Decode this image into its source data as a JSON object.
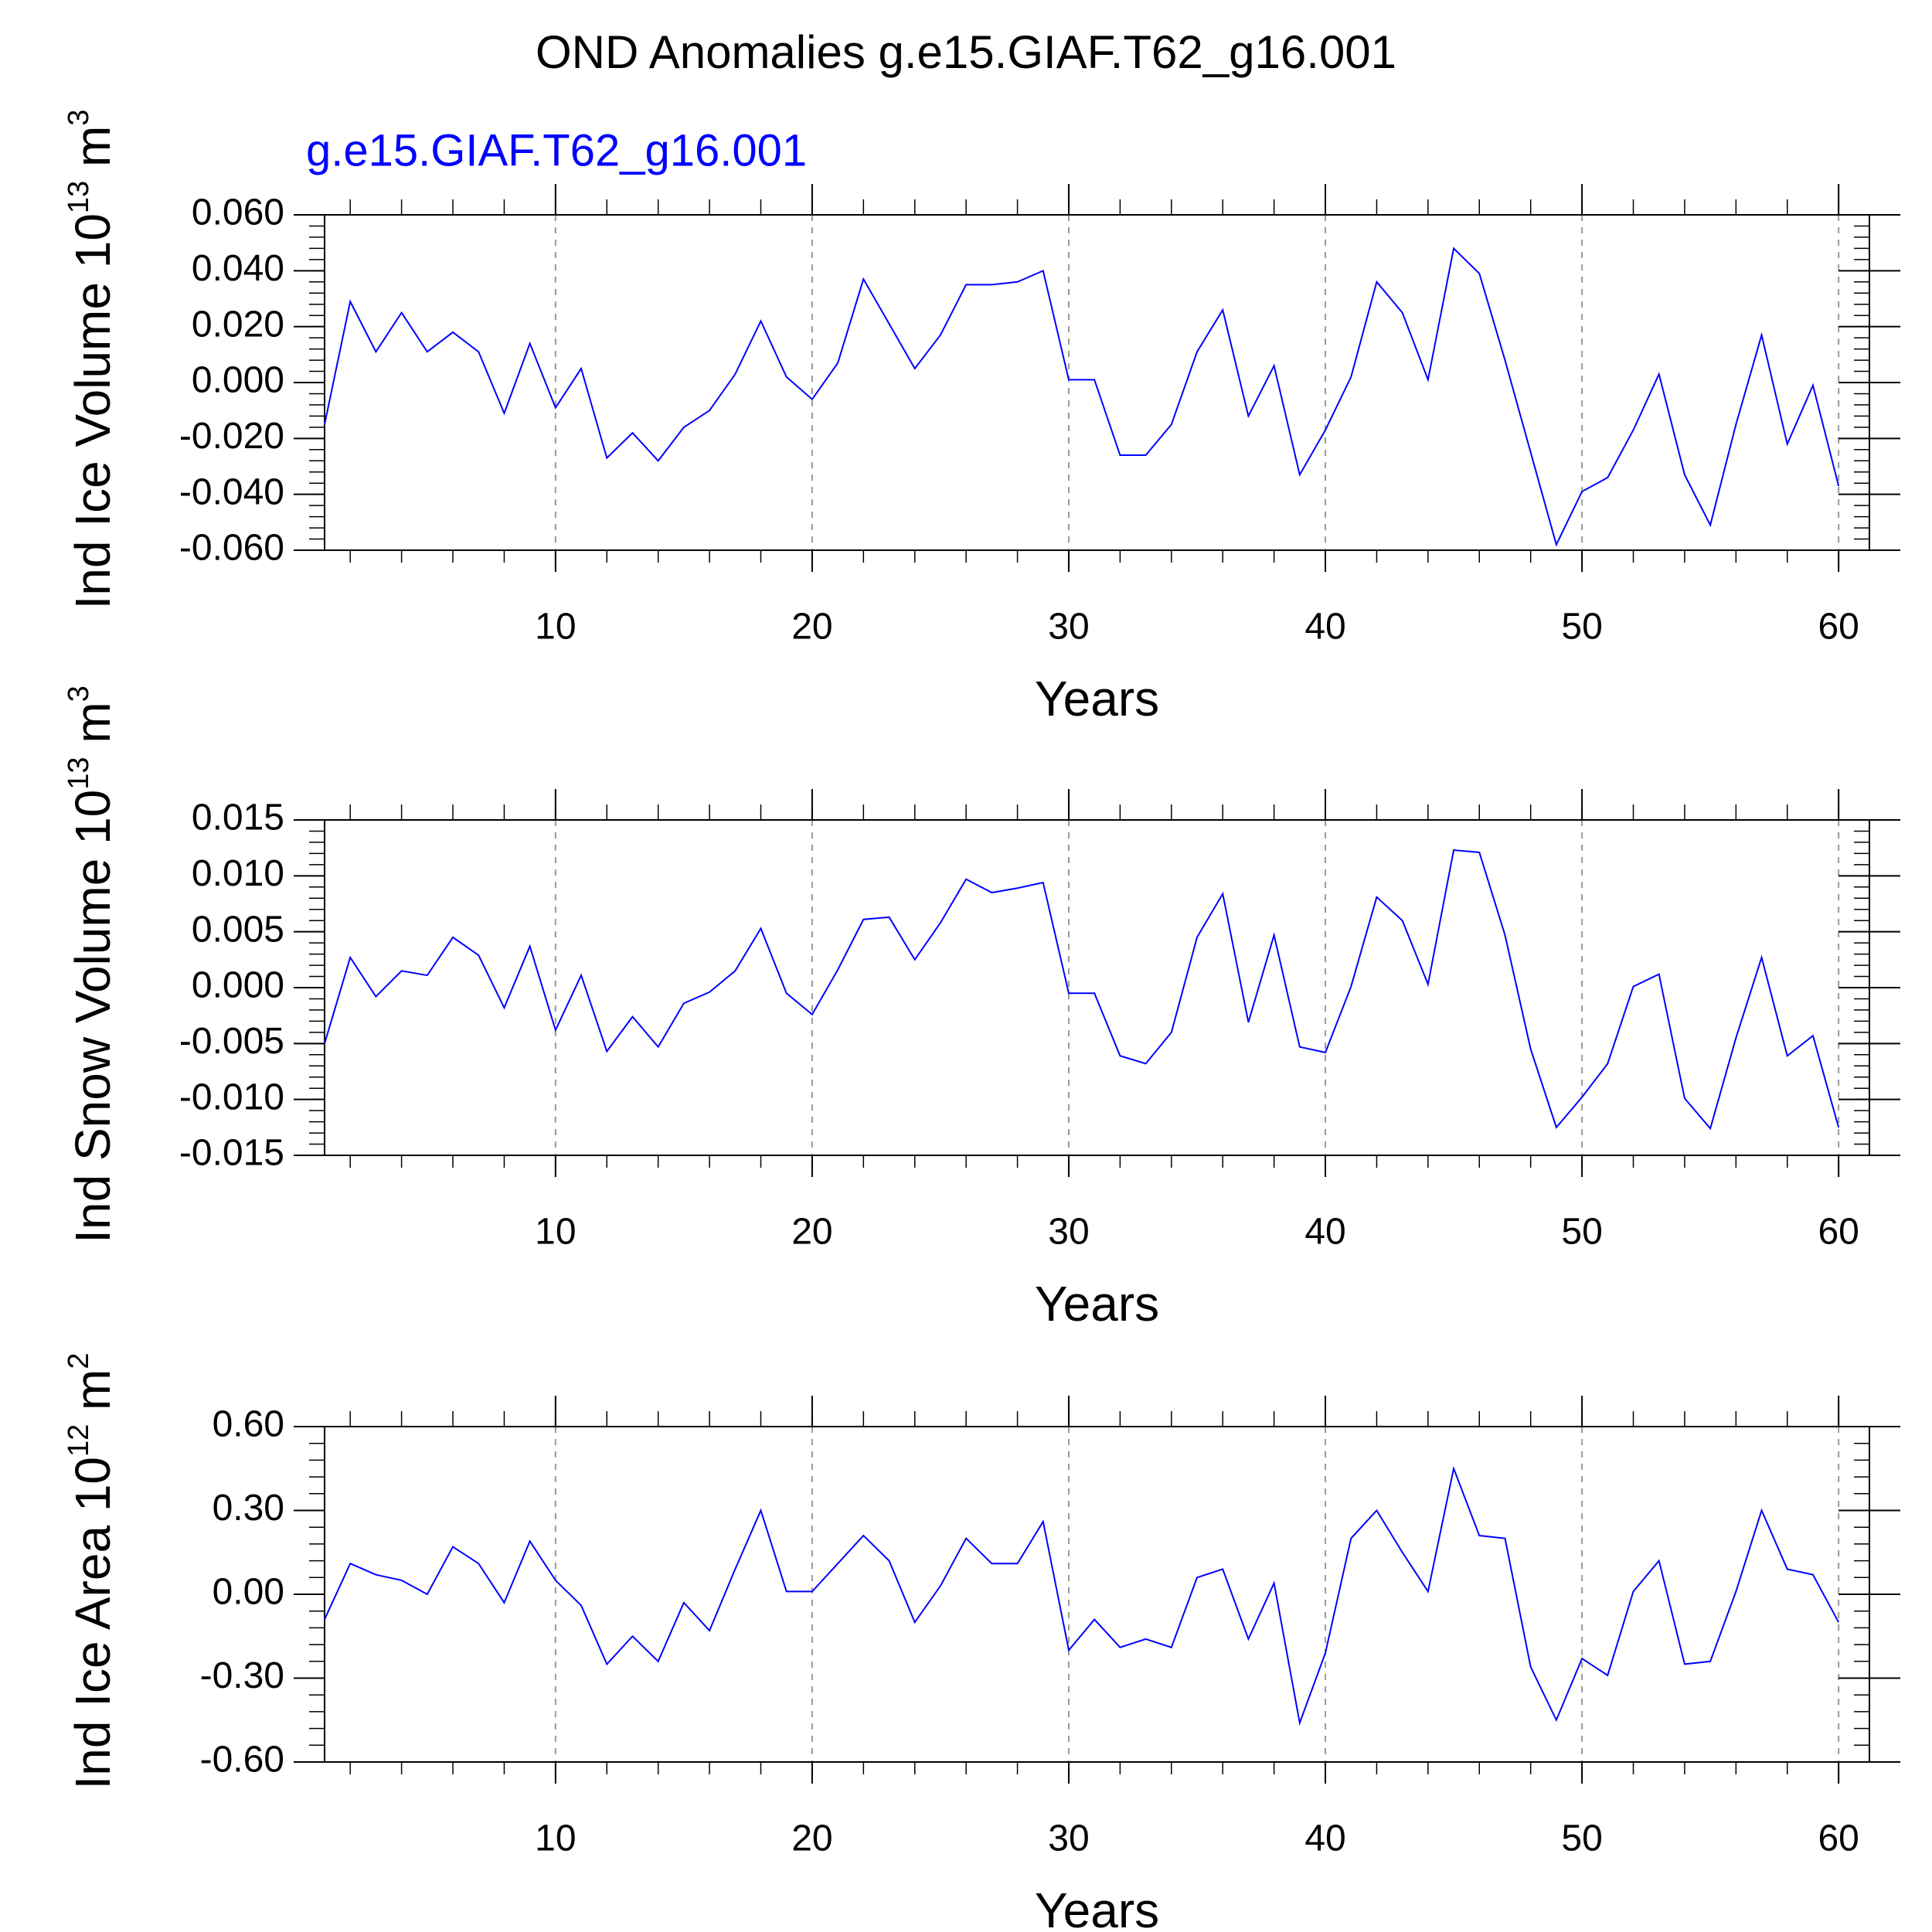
{
  "title": "OND Anomalies g.e15.GIAF.T62_g16.001",
  "chart_data": [
    {
      "type": "line",
      "subtitle": "g.e15.GIAF.T62_g16.001",
      "xlabel": "Years",
      "ylabel": [
        "Ind Ice Volume 10",
        "13",
        " m",
        "3"
      ],
      "x": [
        1,
        2,
        3,
        4,
        5,
        6,
        7,
        8,
        9,
        10,
        11,
        12,
        13,
        14,
        15,
        16,
        17,
        18,
        19,
        20,
        21,
        22,
        23,
        24,
        25,
        26,
        27,
        28,
        29,
        30,
        31,
        32,
        33,
        34,
        35,
        36,
        37,
        38,
        39,
        40,
        41,
        42,
        43,
        44,
        45,
        46,
        47,
        48,
        49,
        50,
        51,
        52,
        53,
        54,
        55,
        56,
        57,
        58,
        59,
        60
      ],
      "series": [
        {
          "name": "g.e15.GIAF.T62_g16.001",
          "color": "#0000ff",
          "values": [
            -0.015,
            0.029,
            0.011,
            0.025,
            0.011,
            0.018,
            0.011,
            -0.011,
            0.014,
            -0.009,
            0.005,
            -0.027,
            -0.018,
            -0.028,
            -0.016,
            -0.01,
            0.003,
            0.022,
            0.002,
            -0.006,
            0.007,
            0.037,
            0.021,
            0.005,
            0.017,
            0.035,
            0.035,
            0.036,
            0.04,
            0.001,
            0.001,
            -0.026,
            -0.026,
            -0.015,
            0.011,
            0.026,
            -0.012,
            0.006,
            -0.033,
            -0.017,
            0.002,
            0.036,
            0.025,
            0.001,
            0.048,
            0.039,
            0.008,
            -0.025,
            -0.058,
            -0.039,
            -0.034,
            -0.017,
            0.003,
            -0.033,
            -0.051,
            -0.015,
            0.017,
            -0.022,
            -0.001,
            -0.037
          ]
        }
      ],
      "xlim": [
        1,
        61.2
      ],
      "xticks": [
        10,
        20,
        30,
        40,
        50,
        60
      ],
      "grid": true,
      "ylim": [
        -0.06,
        0.06
      ],
      "yticks": [
        {
          "value": -0.06,
          "label": "-0.060"
        },
        {
          "value": -0.04,
          "label": "-0.040"
        },
        {
          "value": -0.02,
          "label": "-0.020"
        },
        {
          "value": 0,
          "label": "0.000"
        },
        {
          "value": 0.02,
          "label": "0.020"
        },
        {
          "value": 0.04,
          "label": "0.040"
        },
        {
          "value": 0.06,
          "label": "0.060"
        }
      ]
    },
    {
      "type": "line",
      "xlabel": "Years",
      "ylabel": [
        "Ind Snow Volume 10",
        "13",
        " m",
        "3"
      ],
      "x": [
        1,
        2,
        3,
        4,
        5,
        6,
        7,
        8,
        9,
        10,
        11,
        12,
        13,
        14,
        15,
        16,
        17,
        18,
        19,
        20,
        21,
        22,
        23,
        24,
        25,
        26,
        27,
        28,
        29,
        30,
        31,
        32,
        33,
        34,
        35,
        36,
        37,
        38,
        39,
        40,
        41,
        42,
        43,
        44,
        45,
        46,
        47,
        48,
        49,
        50,
        51,
        52,
        53,
        54,
        55,
        56,
        57,
        58,
        59,
        60
      ],
      "series": [
        {
          "name": "g.e15.GIAF.T62_g16.001",
          "color": "#0000ff",
          "values": [
            -0.005,
            0.0027,
            -0.0008,
            0.0015,
            0.0011,
            0.0045,
            0.0029,
            -0.0018,
            0.0037,
            -0.0038,
            0.0011,
            -0.0057,
            -0.0026,
            -0.0053,
            -0.0014,
            -0.0004,
            0.0015,
            0.0053,
            -0.0005,
            -0.0024,
            0.0016,
            0.0061,
            0.0063,
            0.0025,
            0.0058,
            0.0097,
            0.0085,
            0.0089,
            0.0094,
            -0.0005,
            -0.0005,
            -0.0061,
            -0.0068,
            -0.004,
            0.0045,
            0.0084,
            -0.0031,
            0.0047,
            -0.0053,
            -0.0058,
            0.0001,
            0.0081,
            0.006,
            0.0003,
            0.0123,
            0.0121,
            0.0047,
            -0.0055,
            -0.0125,
            -0.0098,
            -0.0068,
            0.0001,
            0.0012,
            -0.0099,
            -0.0126,
            -0.0045,
            0.0027,
            -0.0061,
            -0.0043,
            -0.0125
          ]
        }
      ],
      "xlim": [
        1,
        61.2
      ],
      "xticks": [
        10,
        20,
        30,
        40,
        50,
        60
      ],
      "grid": true,
      "ylim": [
        -0.015,
        0.015
      ],
      "yticks": [
        {
          "value": -0.015,
          "label": "-0.015"
        },
        {
          "value": -0.01,
          "label": "-0.010"
        },
        {
          "value": -0.005,
          "label": "-0.005"
        },
        {
          "value": 0,
          "label": "0.000"
        },
        {
          "value": 0.005,
          "label": "0.005"
        },
        {
          "value": 0.01,
          "label": "0.010"
        },
        {
          "value": 0.015,
          "label": "0.015"
        }
      ]
    },
    {
      "type": "line",
      "xlabel": "Years",
      "ylabel": [
        "Ind Ice Area 10",
        "12",
        " m",
        "2"
      ],
      "x": [
        1,
        2,
        3,
        4,
        5,
        6,
        7,
        8,
        9,
        10,
        11,
        12,
        13,
        14,
        15,
        16,
        17,
        18,
        19,
        20,
        21,
        22,
        23,
        24,
        25,
        26,
        27,
        28,
        29,
        30,
        31,
        32,
        33,
        34,
        35,
        36,
        37,
        38,
        39,
        40,
        41,
        42,
        43,
        44,
        45,
        46,
        47,
        48,
        49,
        50,
        51,
        52,
        53,
        54,
        55,
        56,
        57,
        58,
        59,
        60
      ],
      "series": [
        {
          "name": "g.e15.GIAF.T62_g16.001",
          "color": "#0000ff",
          "values": [
            -0.09,
            0.11,
            0.07,
            0.05,
            0.0,
            0.17,
            0.11,
            -0.03,
            0.19,
            0.05,
            -0.04,
            -0.25,
            -0.15,
            -0.24,
            -0.03,
            -0.13,
            0.09,
            0.3,
            0.01,
            0.01,
            0.11,
            0.21,
            0.12,
            -0.1,
            0.03,
            0.2,
            0.11,
            0.11,
            0.26,
            -0.2,
            -0.09,
            -0.19,
            -0.16,
            -0.19,
            0.06,
            0.09,
            -0.16,
            0.04,
            -0.46,
            -0.21,
            0.2,
            0.3,
            0.15,
            0.01,
            0.45,
            0.21,
            0.2,
            -0.26,
            -0.45,
            -0.23,
            -0.29,
            0.01,
            0.12,
            -0.25,
            -0.24,
            0.01,
            0.3,
            0.09,
            0.07,
            -0.1
          ]
        }
      ],
      "xlim": [
        1,
        61.2
      ],
      "xticks": [
        10,
        20,
        30,
        40,
        50,
        60
      ],
      "grid": true,
      "ylim": [
        -0.6,
        0.6
      ],
      "yticks": [
        {
          "value": -0.6,
          "label": "-0.60"
        },
        {
          "value": -0.3,
          "label": "-0.30"
        },
        {
          "value": 0,
          "label": "0.00"
        },
        {
          "value": 0.3,
          "label": "0.30"
        },
        {
          "value": 0.6,
          "label": "0.60"
        }
      ]
    }
  ]
}
